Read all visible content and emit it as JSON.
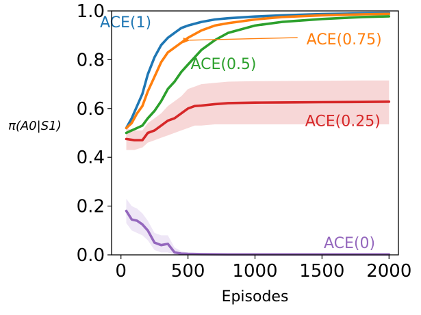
{
  "chart_data": {
    "type": "line",
    "title": "",
    "xlabel": "Episodes",
    "ylabel": "π(A0|S1)",
    "xlim": [
      -70,
      2070
    ],
    "ylim": [
      0.0,
      1.0
    ],
    "xticks": [
      0,
      500,
      1000,
      1500,
      2000
    ],
    "xtick_labels": [
      "0",
      "500",
      "1000",
      "1500",
      "2000"
    ],
    "yticks": [
      0.0,
      0.2,
      0.4,
      0.6,
      0.8,
      1.0
    ],
    "ytick_labels": [
      "0.0",
      "0.2",
      "0.4",
      "0.6",
      "0.8",
      "1.0"
    ],
    "grid": false,
    "legend": "none (direct labels)",
    "series": [
      {
        "name": "ACE(1)",
        "color": "#1f77b4",
        "x": [
          40,
          80,
          120,
          160,
          200,
          250,
          300,
          350,
          400,
          450,
          500,
          600,
          700,
          800,
          1000,
          1200,
          1500,
          1800,
          2000
        ],
        "values": [
          0.52,
          0.56,
          0.61,
          0.66,
          0.74,
          0.81,
          0.86,
          0.89,
          0.91,
          0.93,
          0.94,
          0.955,
          0.965,
          0.97,
          0.977,
          0.982,
          0.987,
          0.99,
          0.992
        ],
        "band": []
      },
      {
        "name": "ACE(0.75)",
        "color": "#ff7f0e",
        "x": [
          40,
          80,
          120,
          160,
          200,
          250,
          300,
          350,
          400,
          450,
          500,
          600,
          700,
          800,
          1000,
          1200,
          1500,
          1800,
          2000
        ],
        "values": [
          0.52,
          0.54,
          0.58,
          0.61,
          0.67,
          0.73,
          0.79,
          0.83,
          0.85,
          0.87,
          0.89,
          0.92,
          0.94,
          0.95,
          0.965,
          0.975,
          0.982,
          0.986,
          0.988
        ],
        "band": []
      },
      {
        "name": "ACE(0.5)",
        "color": "#2ca02c",
        "x": [
          40,
          80,
          120,
          160,
          200,
          250,
          300,
          350,
          400,
          450,
          500,
          550,
          600,
          700,
          800,
          1000,
          1200,
          1500,
          1800,
          2000
        ],
        "values": [
          0.5,
          0.51,
          0.52,
          0.53,
          0.56,
          0.59,
          0.63,
          0.68,
          0.71,
          0.75,
          0.78,
          0.81,
          0.84,
          0.88,
          0.91,
          0.94,
          0.955,
          0.967,
          0.975,
          0.978
        ],
        "band": []
      },
      {
        "name": "ACE(0.25)",
        "color": "#d62728",
        "band_color": "#f4c6c6",
        "x": [
          40,
          100,
          160,
          200,
          250,
          300,
          350,
          400,
          450,
          500,
          550,
          600,
          700,
          800,
          1000,
          1200,
          1500,
          1800,
          2000
        ],
        "values": [
          0.475,
          0.47,
          0.47,
          0.5,
          0.51,
          0.53,
          0.55,
          0.56,
          0.58,
          0.6,
          0.61,
          0.612,
          0.618,
          0.622,
          0.624,
          0.625,
          0.626,
          0.627,
          0.628
        ],
        "band": [
          [
            0.43,
            0.52
          ],
          [
            0.43,
            0.51
          ],
          [
            0.44,
            0.51
          ],
          [
            0.46,
            0.54
          ],
          [
            0.47,
            0.56
          ],
          [
            0.48,
            0.58
          ],
          [
            0.49,
            0.61
          ],
          [
            0.5,
            0.63
          ],
          [
            0.51,
            0.65
          ],
          [
            0.52,
            0.68
          ],
          [
            0.53,
            0.69
          ],
          [
            0.53,
            0.7
          ],
          [
            0.535,
            0.705
          ],
          [
            0.535,
            0.71
          ],
          [
            0.535,
            0.712
          ],
          [
            0.535,
            0.713
          ],
          [
            0.535,
            0.714
          ],
          [
            0.535,
            0.715
          ],
          [
            0.535,
            0.715
          ]
        ]
      },
      {
        "name": "ACE(0)",
        "color": "#9467bd",
        "band_color": "#e7dcf2",
        "x": [
          40,
          80,
          120,
          160,
          200,
          250,
          300,
          350,
          400,
          450,
          500,
          600,
          800,
          1000,
          1500,
          2000
        ],
        "values": [
          0.18,
          0.145,
          0.14,
          0.125,
          0.1,
          0.05,
          0.04,
          0.045,
          0.01,
          0.005,
          0.004,
          0.003,
          0.002,
          0.002,
          0.002,
          0.002
        ],
        "band": [
          [
            0.13,
            0.23
          ],
          [
            0.1,
            0.2
          ],
          [
            0.09,
            0.19
          ],
          [
            0.08,
            0.17
          ],
          [
            0.06,
            0.14
          ],
          [
            0.02,
            0.09
          ],
          [
            0.01,
            0.08
          ],
          [
            0.01,
            0.08
          ],
          [
            0.0,
            0.03
          ],
          [
            0.0,
            0.015
          ],
          [
            0.0,
            0.01
          ],
          [
            0.0,
            0.008
          ],
          [
            0.0,
            0.005
          ],
          [
            0.0,
            0.005
          ],
          [
            0.0,
            0.005
          ],
          [
            0.0,
            0.005
          ]
        ]
      }
    ],
    "annotations": [
      {
        "text": "ACE(1)",
        "color": "#1f77b4",
        "x": 35,
        "y": 0.955,
        "anchor": "middle"
      },
      {
        "text": "ACE(0.75)",
        "color": "#ff7f0e",
        "x": 1665,
        "y": 0.885,
        "anchor": "middle",
        "arrow_to": [
          460,
          0.88
        ]
      },
      {
        "text": "ACE(0.5)",
        "color": "#2ca02c",
        "x": 765,
        "y": 0.785,
        "anchor": "middle"
      },
      {
        "text": "ACE(0.25)",
        "color": "#d62728",
        "x": 1655,
        "y": 0.55,
        "anchor": "middle"
      },
      {
        "text": "ACE(0)",
        "color": "#9467bd",
        "x": 1705,
        "y": 0.05,
        "anchor": "middle"
      }
    ]
  }
}
